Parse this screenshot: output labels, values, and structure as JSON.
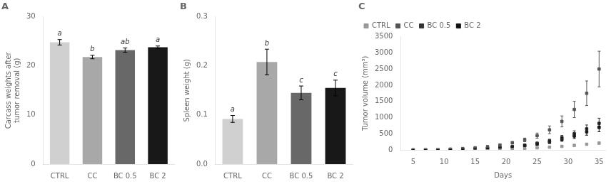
{
  "chart_data": [
    {
      "type": "bar",
      "title": "A",
      "categories": [
        "CTRL",
        "CC",
        "BC 0.5",
        "BC 2"
      ],
      "values": [
        24.8,
        21.8,
        23.2,
        23.8
      ],
      "errors": [
        0.55,
        0.35,
        0.45,
        0.25
      ],
      "colors": [
        "#d0d0d0",
        "#a8a8a8",
        "#686868",
        "#181818"
      ],
      "annotations": [
        "a",
        "b",
        "ab",
        "a"
      ],
      "ylabel": "Carcass weights after\ntumor removal (g)",
      "ylim": [
        0,
        30
      ],
      "yticks": [
        0,
        10,
        20,
        30
      ],
      "grid": false
    },
    {
      "type": "bar",
      "title": "B",
      "categories": [
        "CTRL",
        "CC",
        "BC 0.5",
        "BC 2"
      ],
      "values": [
        0.092,
        0.208,
        0.145,
        0.155
      ],
      "errors": [
        0.007,
        0.026,
        0.014,
        0.016
      ],
      "colors": [
        "#d0d0d0",
        "#a8a8a8",
        "#686868",
        "#181818"
      ],
      "annotations": [
        "a",
        "b",
        "c",
        "c"
      ],
      "ylabel": "Spleen weight (g)",
      "ylim": [
        0,
        0.3
      ],
      "yticks": [
        {
          "value": 0,
          "label": "0.0"
        },
        0.1,
        0.2,
        0.3
      ],
      "grid": false
    },
    {
      "type": "scatter",
      "title": "C",
      "xlabel": "Days",
      "ylabel": "Tumor volume (mm³)",
      "x": [
        5,
        7,
        9,
        11,
        13,
        15,
        17,
        19,
        21,
        23,
        25,
        27,
        29,
        31,
        33,
        35
      ],
      "series": [
        {
          "name": "CTRL",
          "color": "#999999",
          "values": [
            2,
            3,
            5,
            7,
            10,
            14,
            19,
            26,
            36,
            48,
            65,
            85,
            110,
            140,
            175,
            210
          ],
          "errors": [
            1,
            1,
            1,
            2,
            2,
            3,
            4,
            5,
            6,
            8,
            10,
            14,
            18,
            22,
            28,
            35
          ]
        },
        {
          "name": "CC",
          "color": "#555555",
          "values": [
            3,
            7,
            14,
            25,
            42,
            65,
            100,
            150,
            220,
            310,
            440,
            620,
            880,
            1250,
            1750,
            2500
          ],
          "errors": [
            1,
            2,
            3,
            5,
            8,
            12,
            18,
            25,
            38,
            55,
            80,
            120,
            170,
            250,
            380,
            550
          ]
        },
        {
          "name": "BC 0.5",
          "color": "#333333",
          "values": [
            2,
            4,
            8,
            14,
            22,
            34,
            50,
            72,
            105,
            148,
            205,
            280,
            380,
            500,
            650,
            820
          ],
          "errors": [
            1,
            1,
            2,
            3,
            4,
            6,
            9,
            13,
            18,
            25,
            35,
            50,
            68,
            90,
            120,
            160
          ]
        },
        {
          "name": "BC 2",
          "color": "#111111",
          "values": [
            2,
            4,
            7,
            12,
            19,
            29,
            43,
            62,
            90,
            128,
            177,
            242,
            325,
            430,
            560,
            700
          ],
          "errors": [
            1,
            1,
            2,
            3,
            4,
            5,
            8,
            11,
            16,
            22,
            30,
            42,
            58,
            78,
            105,
            140
          ]
        }
      ],
      "xlim": [
        3,
        36
      ],
      "xticks": [
        5,
        10,
        15,
        20,
        25,
        30,
        35
      ],
      "ylim": [
        0,
        3500
      ],
      "yticks": [
        0,
        500,
        1000,
        1500,
        2000,
        2500,
        3000,
        3500
      ],
      "grid": false,
      "legend": "top-left",
      "marker": "square",
      "line_style": "none"
    }
  ]
}
